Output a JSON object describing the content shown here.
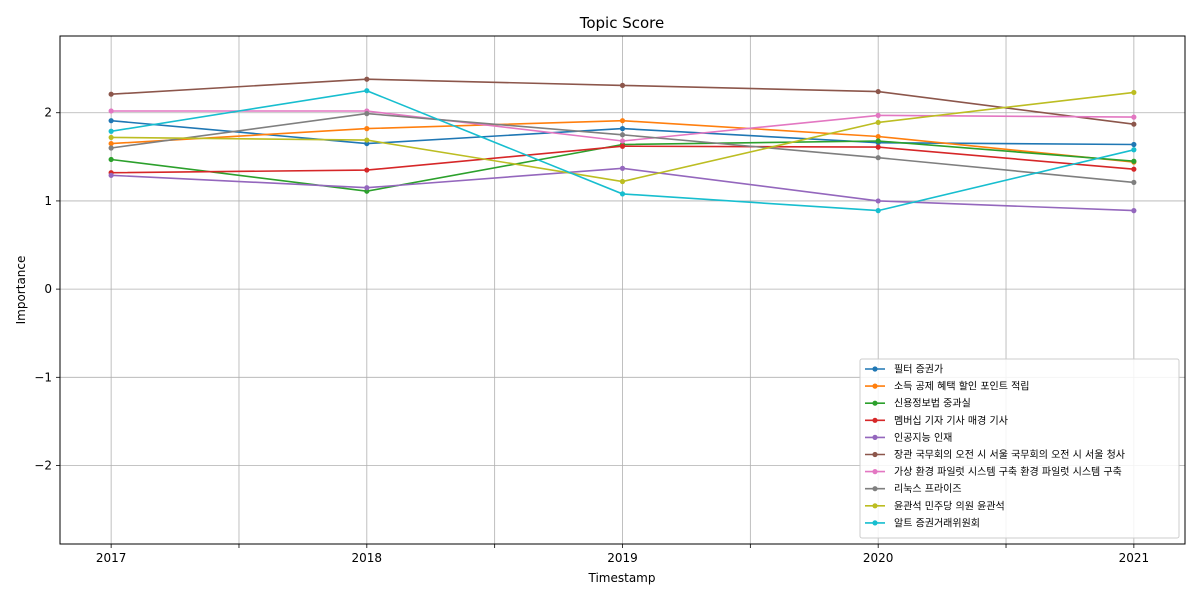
{
  "chart_data": {
    "type": "line",
    "title": "Topic Score",
    "xlabel": "Timestamp",
    "ylabel": "Importance",
    "x": [
      2017,
      2017.5,
      2018,
      2018.5,
      2019,
      2019.5,
      2020,
      2020.5,
      2021
    ],
    "xticks": [
      2017,
      2017.5,
      2018,
      2018.5,
      2019,
      2019.5,
      2020,
      2020.5,
      2021
    ],
    "xticklabels": [
      "2017",
      "",
      "2018",
      "",
      "2019",
      "",
      "2020",
      "",
      "2021"
    ],
    "xlim": [
      2016.8,
      2021.2
    ],
    "yticks": [
      2,
      1,
      0,
      -1,
      -2
    ],
    "yticklabels": [
      "2",
      "1",
      "0",
      "−1",
      "−2"
    ],
    "ylim": [
      -2.89,
      2.87
    ],
    "grid": true,
    "legend_position": "lower right",
    "series": [
      {
        "name": "필터 증권가",
        "color": "#1f77b4",
        "x": [
          2017,
          2018,
          2019,
          2020,
          2021
        ],
        "values": [
          1.91,
          1.65,
          1.82,
          1.66,
          1.64
        ]
      },
      {
        "name": "소득 공제 혜택 할인 포인트 적립",
        "color": "#ff7f0e",
        "x": [
          2017,
          2018,
          2019,
          2020,
          2021
        ],
        "values": [
          1.65,
          1.82,
          1.91,
          1.73,
          1.44
        ]
      },
      {
        "name": "신용정보법 중과실",
        "color": "#2ca02c",
        "x": [
          2017,
          2018,
          2019,
          2020,
          2021
        ],
        "values": [
          1.47,
          1.11,
          1.64,
          1.68,
          1.45
        ]
      },
      {
        "name": "멤버십 기자 기사 매경 기사",
        "color": "#d62728",
        "x": [
          2017,
          2018,
          2019,
          2020,
          2021
        ],
        "values": [
          1.32,
          1.35,
          1.62,
          1.61,
          1.36
        ]
      },
      {
        "name": "인공지능 인재",
        "color": "#9467bd",
        "x": [
          2017,
          2018,
          2019,
          2020,
          2021
        ],
        "values": [
          1.29,
          1.15,
          1.37,
          1.0,
          0.89
        ]
      },
      {
        "name": "장관 국무회의 오전 시 서울 국무회의 오전 시 서울 청사",
        "color": "#8c564b",
        "x": [
          2017,
          2018,
          2019,
          2020,
          2021
        ],
        "values": [
          2.21,
          2.38,
          2.31,
          2.24,
          1.87
        ]
      },
      {
        "name": "가상 환경 파일럿 시스템 구축 환경 파일럿 시스템 구축",
        "color": "#e377c2",
        "x": [
          2017,
          2018,
          2019,
          2020,
          2021
        ],
        "values": [
          2.02,
          2.02,
          1.68,
          1.97,
          1.95
        ]
      },
      {
        "name": "리눅스 프라이즈",
        "color": "#7f7f7f",
        "x": [
          2017,
          2018,
          2019,
          2020,
          2021
        ],
        "values": [
          1.6,
          1.99,
          1.75,
          1.49,
          1.21
        ]
      },
      {
        "name": "윤관석 민주당 의원 윤관석",
        "color": "#bcbd22",
        "x": [
          2017,
          2018,
          2019,
          2020,
          2021
        ],
        "values": [
          1.72,
          1.69,
          1.22,
          1.89,
          2.23
        ]
      },
      {
        "name": "알트 증권거래위원회",
        "color": "#17becf",
        "x": [
          2017,
          2018,
          2019,
          2020,
          2021
        ],
        "values": [
          1.79,
          2.25,
          1.08,
          0.89,
          1.58
        ]
      }
    ]
  }
}
